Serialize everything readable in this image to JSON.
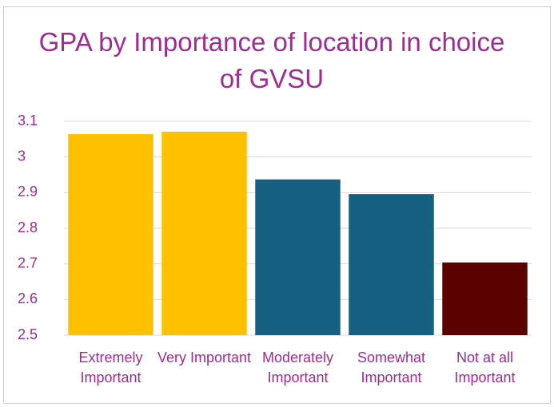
{
  "chart_data": {
    "type": "bar",
    "title": "GPA by Importance of location in choice of GVSU",
    "categories": [
      "Extremely Important",
      "Very Important",
      "Moderately Important",
      "Somewhat Important",
      "Not at all Important"
    ],
    "values": [
      3.064,
      3.071,
      2.937,
      2.896,
      2.704
    ],
    "colors": [
      "#FFC000",
      "#FFC000",
      "#156082",
      "#156082",
      "#5C0000"
    ],
    "ylim": [
      2.5,
      3.1
    ],
    "yticks": [
      2.5,
      2.6,
      2.7,
      2.8,
      2.9,
      3,
      3.1
    ],
    "grid": true
  }
}
